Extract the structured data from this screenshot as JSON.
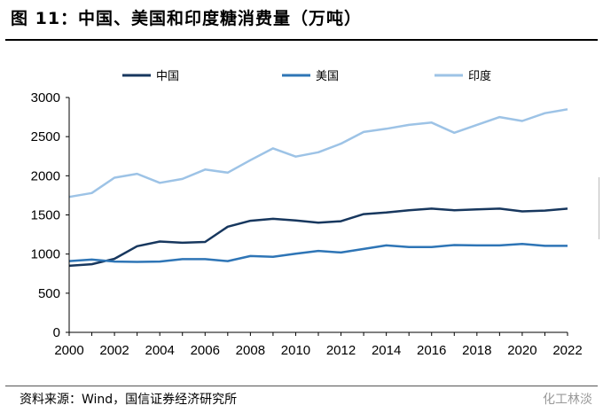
{
  "header": {
    "title": "图 11：中国、美国和印度糖消费量（万吨）"
  },
  "footer": {
    "source": "资料来源：Wind，国信证券经济研究所",
    "watermark": "化工林淡"
  },
  "chart_data": {
    "type": "line",
    "title": "图 11：中国、美国和印度糖消费量（万吨）",
    "xlabel": "",
    "ylabel": "",
    "x": [
      2000,
      2001,
      2002,
      2003,
      2004,
      2005,
      2006,
      2007,
      2008,
      2009,
      2010,
      2011,
      2012,
      2013,
      2014,
      2015,
      2016,
      2017,
      2018,
      2019,
      2020,
      2021,
      2022
    ],
    "xticks": [
      2000,
      2002,
      2004,
      2006,
      2008,
      2010,
      2012,
      2014,
      2016,
      2018,
      2020,
      2022
    ],
    "ylim": [
      0,
      3000
    ],
    "yticks": [
      0,
      500,
      1000,
      1500,
      2000,
      2500,
      3000
    ],
    "grid": false,
    "legend": "top",
    "series": [
      {
        "name": "中国",
        "color": "#17375e",
        "values": [
          850,
          870,
          940,
          1100,
          1160,
          1145,
          1155,
          1350,
          1425,
          1450,
          1430,
          1400,
          1420,
          1510,
          1530,
          1560,
          1580,
          1560,
          1570,
          1580,
          1545,
          1555,
          1580
        ]
      },
      {
        "name": "美国",
        "color": "#2e75b6",
        "values": [
          910,
          930,
          905,
          900,
          905,
          935,
          935,
          910,
          975,
          965,
          1005,
          1040,
          1020,
          1065,
          1110,
          1090,
          1090,
          1115,
          1110,
          1110,
          1130,
          1105,
          1105
        ]
      },
      {
        "name": "印度",
        "color": "#9dc3e6",
        "values": [
          1730,
          1780,
          1975,
          2025,
          1910,
          1960,
          2080,
          2040,
          2200,
          2350,
          2245,
          2300,
          2410,
          2560,
          2600,
          2650,
          2680,
          2550,
          2650,
          2750,
          2700,
          2800,
          2850
        ]
      }
    ]
  }
}
